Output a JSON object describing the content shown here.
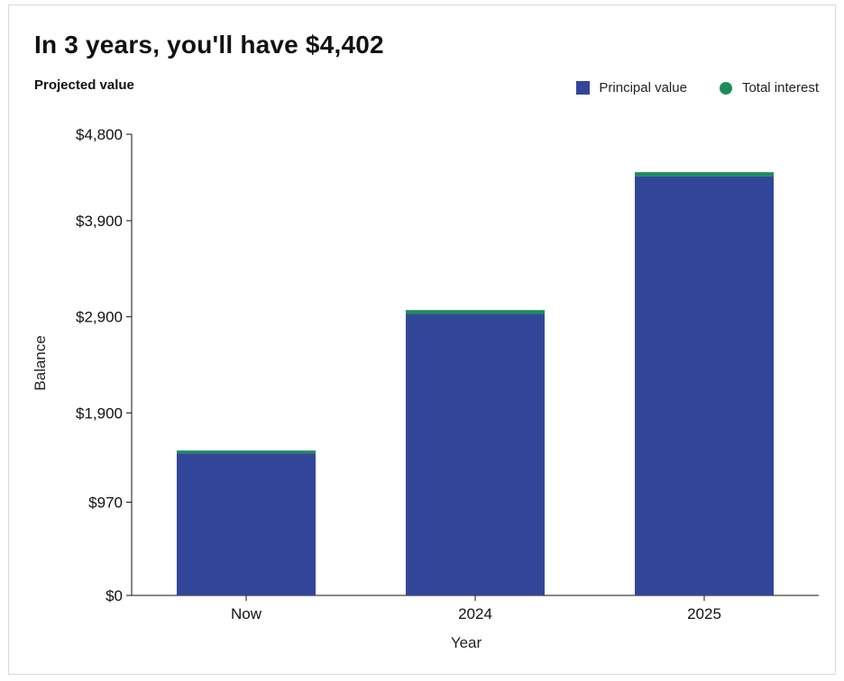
{
  "headline": "In 3 years, you'll have $4,402",
  "subtitle": "Projected value",
  "colors": {
    "principal": "#324699",
    "interest": "#1e8c5a",
    "axis": "#111111"
  },
  "chart_data": {
    "type": "bar",
    "stacked": true,
    "categories": [
      "Now",
      "2024",
      "2025"
    ],
    "series": [
      {
        "name": "Principal value",
        "values": [
          1480,
          2930,
          4360
        ]
      },
      {
        "name": "Total interest",
        "values": [
          20,
          40,
          45
        ]
      }
    ],
    "xlabel": "Year",
    "ylabel": "Balance",
    "ylim": [
      0,
      4800
    ],
    "yticks": [
      0,
      970,
      1900,
      2900,
      3900,
      4800
    ],
    "ytick_labels": [
      "$0",
      "$970",
      "$1,900",
      "$2,900",
      "$3,900",
      "$4,800"
    ],
    "grid": false,
    "legend_position": "top-right"
  }
}
